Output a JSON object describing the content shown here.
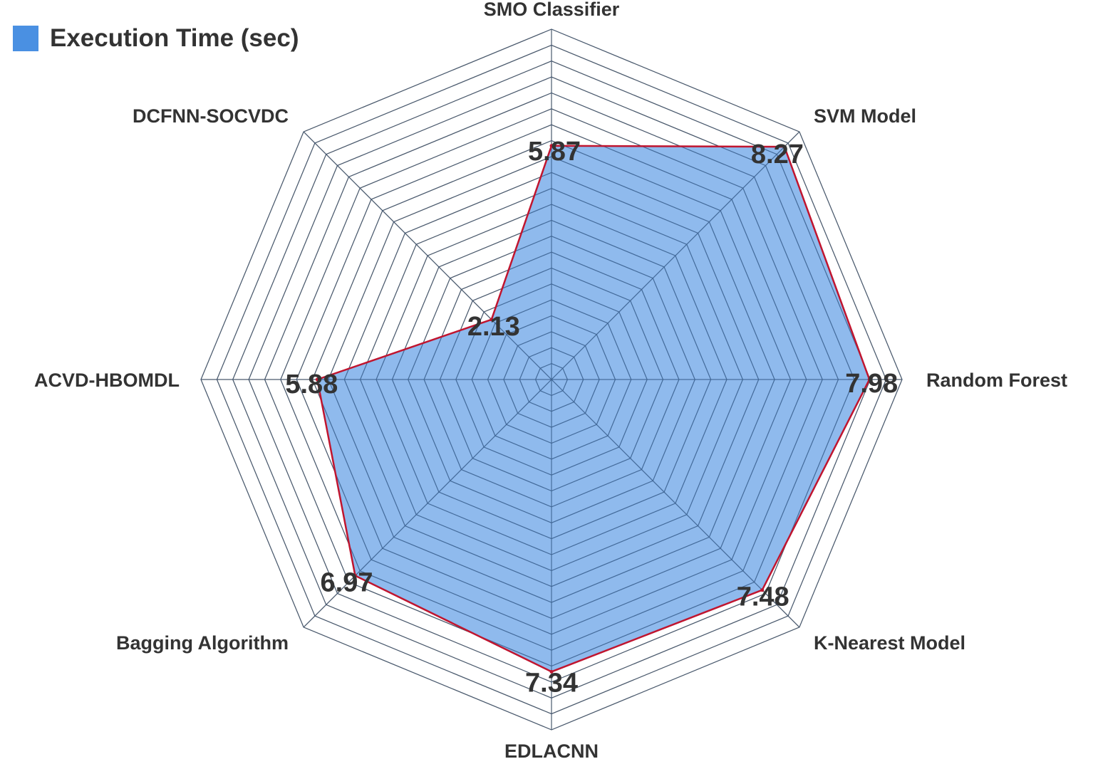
{
  "chart_data": {
    "type": "radar",
    "title": "",
    "categories": [
      "SMO Classifier",
      "SVM Model",
      "Random Forest",
      "K-Nearest Model",
      "EDLACNN",
      "Bagging Algorithm",
      "ACVD-HBOMDL",
      "DCFNN-SOCVDC"
    ],
    "series": [
      {
        "name": "Execution Time (sec)",
        "values": [
          5.87,
          8.27,
          7.98,
          7.48,
          7.34,
          6.97,
          5.88,
          2.13
        ]
      }
    ],
    "rmax": 8.8,
    "grid_levels": 22,
    "legend_position": "top-left",
    "colors": {
      "fill": "#4a90e2",
      "line": "#c0152f",
      "grid": "#555555",
      "text": "#333333"
    }
  }
}
